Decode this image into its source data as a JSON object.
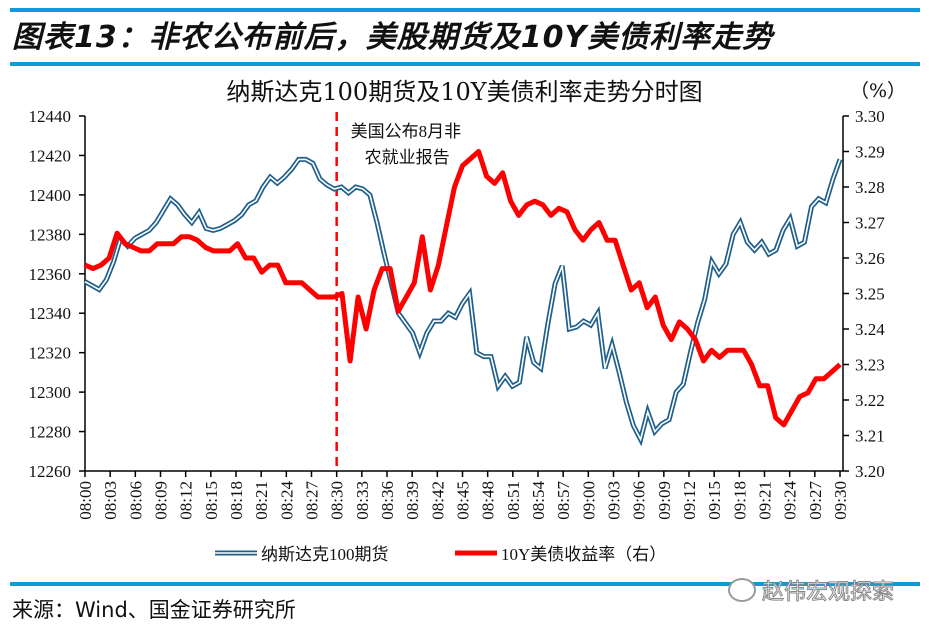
{
  "figure_title": "图表13：非农公布前后，美股期货及10Y美债利率走势",
  "source": "来源：Wind、国金证券研究所",
  "watermark": "赵伟宏观探索",
  "chart_data": {
    "type": "line",
    "title": "纳斯达克100期货及10Y美债利率走势分时图",
    "unit_right": "（%）",
    "xlabel": "",
    "ylabel_left": "",
    "ylabel_right": "%",
    "ylim_left": [
      12260,
      12440
    ],
    "ylim_right": [
      3.2,
      3.3
    ],
    "yticks_left": [
      "12440",
      "12420",
      "12400",
      "12380",
      "12360",
      "12340",
      "12320",
      "12300",
      "12280",
      "12260"
    ],
    "yticks_right": [
      "3.30",
      "3.29",
      "3.28",
      "3.27",
      "3.26",
      "3.25",
      "3.24",
      "3.23",
      "3.22",
      "3.21",
      "3.20"
    ],
    "xticks": [
      "08:00",
      "08:03",
      "08:06",
      "08:09",
      "08:12",
      "08:15",
      "08:18",
      "08:21",
      "08:24",
      "08:27",
      "08:30",
      "08:33",
      "08:36",
      "08:39",
      "08:42",
      "08:45",
      "08:48",
      "08:51",
      "08:54",
      "08:57",
      "09:00",
      "09:03",
      "09:06",
      "09:09",
      "09:12",
      "09:15",
      "09:18",
      "09:21",
      "09:24",
      "09:27",
      "09:30"
    ],
    "grid": false,
    "legend_position": "bottom",
    "annotation": {
      "x": "08:30",
      "text_line1": "美国公布8月非",
      "text_line2": "农就业报告",
      "style": "red-dashed-vertical"
    },
    "series": [
      {
        "name": "纳斯达克100期货",
        "axis": "left",
        "color": "#1f5f8b",
        "x_start": "08:00",
        "step_minutes": 1,
        "values": [
          12356,
          12354,
          12352,
          12357,
          12366,
          12378,
          12374,
          12378,
          12380,
          12382,
          12386,
          12392,
          12398,
          12395,
          12390,
          12386,
          12391,
          12383,
          12382,
          12383,
          12385,
          12387,
          12390,
          12395,
          12397,
          12404,
          12409,
          12406,
          12409,
          12413,
          12418,
          12418,
          12416,
          12408,
          12405,
          12403,
          12404,
          12401,
          12404,
          12403,
          12400,
          12386,
          12370,
          12355,
          12340,
          12335,
          12330,
          12320,
          12330,
          12336,
          12336,
          12340,
          12338,
          12345,
          12350,
          12320,
          12318,
          12318,
          12303,
          12308,
          12303,
          12305,
          12328,
          12315,
          12312,
          12335,
          12355,
          12364,
          12332,
          12333,
          12336,
          12334,
          12340,
          12312,
          12324,
          12310,
          12295,
          12283,
          12276,
          12290,
          12280,
          12284,
          12286,
          12300,
          12304,
          12320,
          12335,
          12347,
          12366,
          12360,
          12365,
          12380,
          12386,
          12376,
          12372,
          12376,
          12370,
          12372,
          12382,
          12388,
          12374,
          12376,
          12394,
          12398,
          12396,
          12408,
          12418
        ]
      },
      {
        "name": "10Y美债收益率（右）",
        "axis": "right",
        "color": "#ff0000",
        "x_start": "08:00",
        "step_minutes": 1,
        "values": [
          3.258,
          3.257,
          3.258,
          3.26,
          3.267,
          3.264,
          3.263,
          3.262,
          3.262,
          3.264,
          3.264,
          3.264,
          3.266,
          3.266,
          3.265,
          3.263,
          3.262,
          3.262,
          3.262,
          3.264,
          3.26,
          3.26,
          3.256,
          3.258,
          3.258,
          3.253,
          3.253,
          3.253,
          3.251,
          3.249,
          3.249,
          3.249,
          3.25,
          3.231,
          3.249,
          3.24,
          3.251,
          3.257,
          3.257,
          3.245,
          3.249,
          3.253,
          3.266,
          3.251,
          3.258,
          3.269,
          3.28,
          3.286,
          3.288,
          3.29,
          3.283,
          3.281,
          3.284,
          3.276,
          3.272,
          3.275,
          3.276,
          3.275,
          3.272,
          3.274,
          3.273,
          3.268,
          3.265,
          3.268,
          3.27,
          3.265,
          3.265,
          3.258,
          3.251,
          3.253,
          3.246,
          3.249,
          3.241,
          3.237,
          3.242,
          3.24,
          3.237,
          3.231,
          3.234,
          3.232,
          3.234,
          3.234,
          3.234,
          3.23,
          3.224,
          3.224,
          3.215,
          3.213,
          3.217,
          3.221,
          3.222,
          3.226,
          3.226,
          3.228,
          3.23
        ]
      }
    ]
  }
}
